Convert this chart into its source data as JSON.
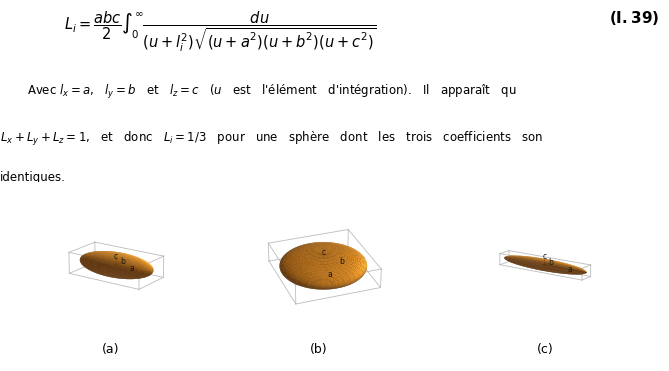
{
  "eq_number": "(I.39)",
  "label_a": "(a)",
  "label_b": "(b)",
  "label_c": "(c)",
  "bg_color": "#ffffff",
  "text_color": "#000000",
  "font_size_text": 8.5,
  "formula_font_size": 10.5,
  "ellipsoid_a": {
    "a": 1.0,
    "b": 0.52,
    "c": 0.35,
    "elev": 18,
    "azim": -55
  },
  "ellipsoid_b": {
    "a": 1.0,
    "b": 1.0,
    "c": 0.32,
    "elev": 30,
    "azim": -20
  },
  "ellipsoid_c": {
    "a": 1.6,
    "b": 0.25,
    "c": 0.25,
    "elev": 15,
    "azim": -55
  }
}
